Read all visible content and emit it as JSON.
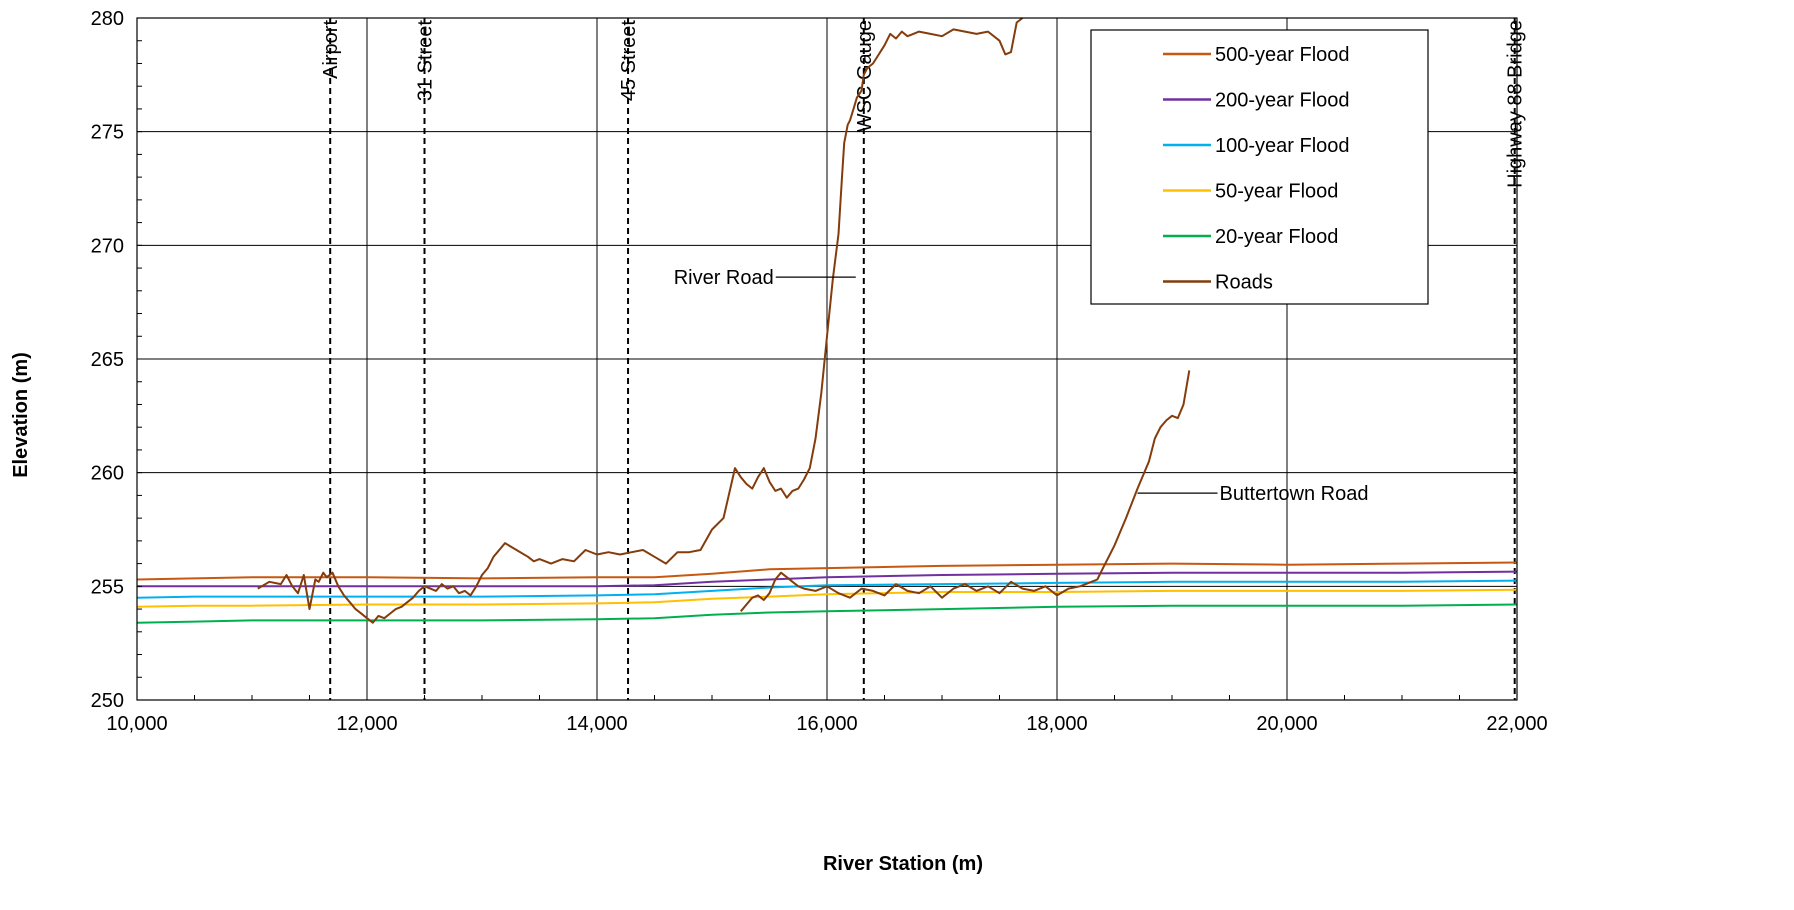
{
  "chart_data": {
    "type": "line",
    "xlabel": "River Station (m)",
    "ylabel": "Elevation (m)",
    "xlim": [
      10000,
      22000
    ],
    "ylim": [
      250,
      280
    ],
    "x_ticks": [
      10000,
      12000,
      14000,
      16000,
      18000,
      20000,
      22000
    ],
    "x_tick_labels": [
      "10,000",
      "12,000",
      "14,000",
      "16,000",
      "18,000",
      "20,000",
      "22,000"
    ],
    "y_ticks": [
      250,
      255,
      260,
      265,
      270,
      275,
      280
    ],
    "y_tick_labels": [
      "250",
      "255",
      "260",
      "265",
      "270",
      "275",
      "280"
    ],
    "grid": true,
    "legend_position": "top-right",
    "series": [
      {
        "name": "500-year Flood",
        "color": "#C65911",
        "x": [
          10000,
          10500,
          11000,
          12000,
          13000,
          14000,
          14500,
          15000,
          15500,
          16000,
          17000,
          18000,
          19000,
          20000,
          21000,
          22000
        ],
        "y": [
          255.3,
          255.35,
          255.4,
          255.4,
          255.35,
          255.4,
          255.4,
          255.55,
          255.75,
          255.8,
          255.9,
          255.95,
          256.0,
          255.95,
          256.0,
          256.05
        ]
      },
      {
        "name": "200-year Flood",
        "color": "#7030A0",
        "x": [
          10000,
          11000,
          12000,
          13000,
          14000,
          14500,
          15000,
          15500,
          16000,
          17000,
          18000,
          19000,
          20000,
          21000,
          22000
        ],
        "y": [
          255.0,
          255.0,
          255.0,
          255.0,
          255.0,
          255.05,
          255.2,
          255.3,
          255.4,
          255.5,
          255.55,
          255.6,
          255.6,
          255.6,
          255.65
        ]
      },
      {
        "name": "100-year Flood",
        "color": "#00B0F0",
        "x": [
          10000,
          10500,
          11000,
          12000,
          13000,
          14000,
          14500,
          15000,
          15500,
          16000,
          17000,
          18000,
          19000,
          20000,
          21000,
          22000
        ],
        "y": [
          254.5,
          254.55,
          254.55,
          254.55,
          254.55,
          254.6,
          254.65,
          254.8,
          254.95,
          255.05,
          255.1,
          255.15,
          255.2,
          255.2,
          255.2,
          255.25
        ]
      },
      {
        "name": "50-year Flood",
        "color": "#FFC000",
        "x": [
          10000,
          10500,
          11000,
          12000,
          13000,
          14000,
          14500,
          15000,
          15500,
          16000,
          17000,
          18000,
          19000,
          20000,
          21000,
          22000
        ],
        "y": [
          254.1,
          254.15,
          254.15,
          254.2,
          254.2,
          254.25,
          254.3,
          254.45,
          254.55,
          254.65,
          254.75,
          254.75,
          254.8,
          254.8,
          254.8,
          254.85
        ]
      },
      {
        "name": "20-year Flood",
        "color": "#00B050",
        "x": [
          10000,
          10500,
          11000,
          12000,
          13000,
          14000,
          14500,
          15000,
          15500,
          16000,
          17000,
          18000,
          19000,
          20000,
          21000,
          22000
        ],
        "y": [
          253.4,
          253.45,
          253.5,
          253.5,
          253.5,
          253.55,
          253.6,
          253.75,
          253.85,
          253.9,
          254.0,
          254.1,
          254.15,
          254.15,
          254.15,
          254.2
        ]
      },
      {
        "name": "Roads",
        "color": "#843C0C",
        "segments": [
          {
            "x": [
              11050,
              11150,
              11250,
              11300,
              11350,
              11400,
              11450,
              11500,
              11550,
              11580,
              11620,
              11650,
              11700,
              11750,
              11800,
              11850,
              11900,
              11950,
              12000,
              12050,
              12100,
              12150,
              12200,
              12250,
              12300,
              12350,
              12400,
              12450,
              12500,
              12550,
              12600,
              12650,
              12700,
              12750,
              12800,
              12850,
              12900,
              12950,
              13000,
              13050,
              13100,
              13200,
              13300,
              13400,
              13450,
              13500,
              13600,
              13700,
              13800,
              13900,
              14000,
              14100,
              14200,
              14300,
              14400,
              14500,
              14600,
              14700,
              14800,
              14900,
              15000,
              15100,
              15200,
              15250,
              15300,
              15350,
              15400,
              15450,
              15500,
              15550,
              15600,
              15650,
              15700,
              15750,
              15800,
              15850,
              15900,
              15950,
              16000,
              16050,
              16100,
              16130,
              16150,
              16180,
              16200,
              16230,
              16260,
              16300,
              16320,
              16350,
              16400,
              16450,
              16500,
              16550,
              16600,
              16650,
              16700,
              16750,
              16800,
              16900,
              17000,
              17100,
              17200,
              17300,
              17400,
              17500,
              17550,
              17600,
              17650,
              17700
            ],
            "y": [
              254.9,
              255.2,
              255.1,
              255.5,
              255.0,
              254.7,
              255.5,
              254.0,
              255.3,
              255.2,
              255.6,
              255.4,
              255.6,
              255.0,
              254.6,
              254.3,
              254.0,
              253.8,
              253.6,
              253.4,
              253.7,
              253.6,
              253.8,
              254.0,
              254.1,
              254.3,
              254.5,
              254.8,
              255.0,
              254.9,
              254.8,
              255.1,
              254.9,
              255.0,
              254.7,
              254.8,
              254.6,
              255.0,
              255.5,
              255.8,
              256.3,
              256.9,
              256.6,
              256.3,
              256.1,
              256.2,
              256.0,
              256.2,
              256.1,
              256.6,
              256.4,
              256.5,
              256.4,
              256.5,
              256.6,
              256.3,
              256.0,
              256.5,
              256.5,
              256.6,
              257.5,
              258.0,
              260.2,
              259.8,
              259.5,
              259.3,
              259.8,
              260.2,
              259.6,
              259.2,
              259.3,
              258.9,
              259.2,
              259.3,
              259.7,
              260.2,
              261.5,
              263.5,
              266.0,
              268.5,
              270.5,
              273.0,
              274.5,
              275.3,
              275.5,
              276.0,
              276.5,
              276.8,
              277.5,
              277.8,
              278.0,
              278.4,
              278.8,
              279.3,
              279.1,
              279.4,
              279.2,
              279.3,
              279.4,
              279.3,
              279.2,
              279.5,
              279.4,
              279.3,
              279.4,
              279.0,
              278.4,
              278.5,
              279.8,
              280.0
            ]
          },
          {
            "x": [
              15250,
              15300,
              15350,
              15400,
              15450,
              15500,
              15550,
              15600,
              15650,
              15700,
              15750,
              15800,
              15900,
              16000,
              16100,
              16200,
              16300,
              16400,
              16500,
              16600,
              16700,
              16800,
              16900,
              17000,
              17100,
              17200,
              17300,
              17400,
              17500,
              17600,
              17700,
              17800,
              17900,
              18000,
              18100,
              18200,
              18300,
              18350,
              18400,
              18500,
              18600,
              18700,
              18800,
              18850,
              18900,
              18950,
              19000,
              19050,
              19100,
              19150
            ],
            "y": [
              253.9,
              254.2,
              254.5,
              254.6,
              254.4,
              254.7,
              255.3,
              255.6,
              255.4,
              255.2,
              255.0,
              254.9,
              254.8,
              255.0,
              254.7,
              254.5,
              254.9,
              254.8,
              254.6,
              255.1,
              254.8,
              254.7,
              255.0,
              254.5,
              254.9,
              255.1,
              254.8,
              255.0,
              254.7,
              255.2,
              254.9,
              254.8,
              255.0,
              254.6,
              254.9,
              255.0,
              255.2,
              255.3,
              255.8,
              256.8,
              258.0,
              259.3,
              260.5,
              261.5,
              262.0,
              262.3,
              262.5,
              262.4,
              263.0,
              264.5
            ]
          }
        ]
      }
    ],
    "vertical_markers": [
      {
        "label": "Airport",
        "x": 11680
      },
      {
        "label": "31 Street",
        "x": 12500
      },
      {
        "label": "45 Street",
        "x": 14270
      },
      {
        "label": "WSC Gauge",
        "x": 16320
      },
      {
        "label": "Highway 88 Bridge",
        "x": 21980
      }
    ],
    "annotations": [
      {
        "label": "River Road",
        "x": 16250,
        "y": 268.6
      },
      {
        "label": "Buttertown Road",
        "x": 18700,
        "y": 259.1
      }
    ]
  }
}
